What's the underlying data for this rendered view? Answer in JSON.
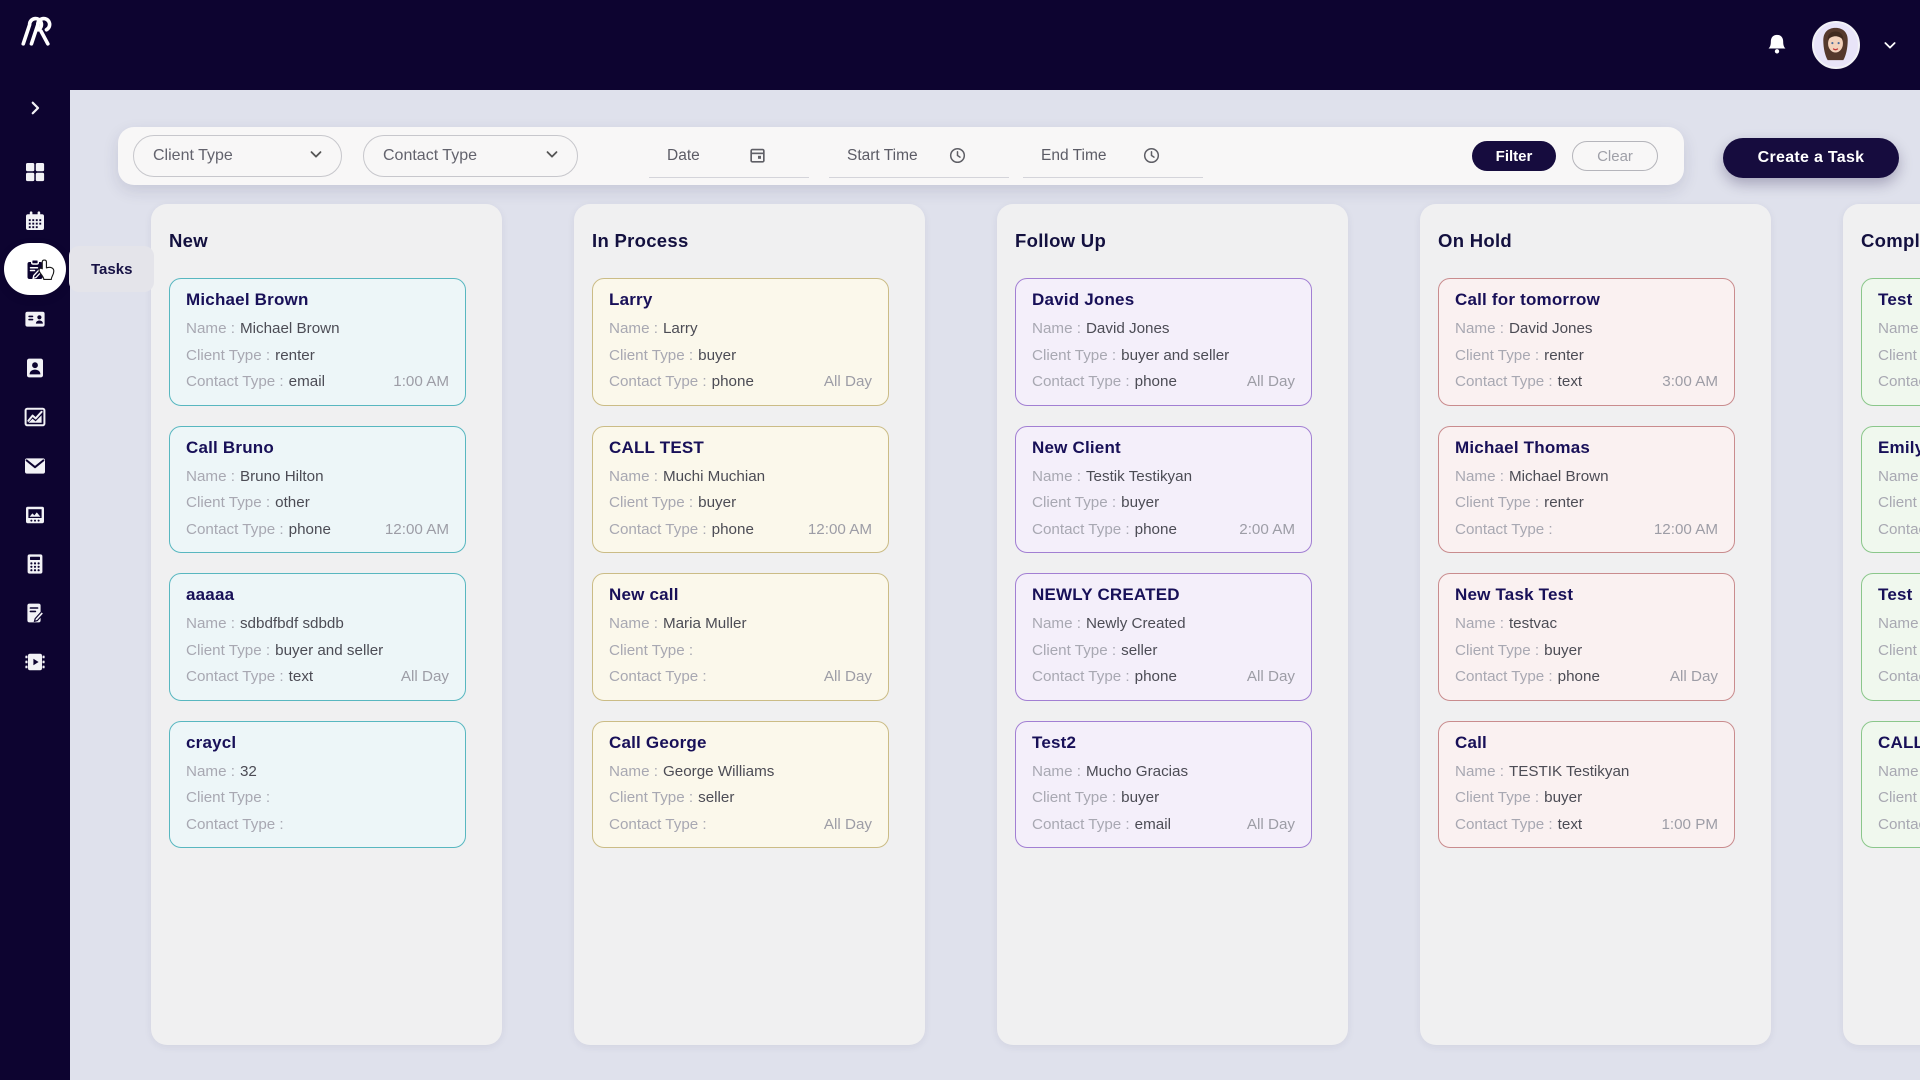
{
  "topbar": {
    "icons": [
      "bell-icon",
      "user-avatar",
      "chevron-down-icon"
    ]
  },
  "sidebar": {
    "collapse_icon": "chevron-right-icon",
    "items": [
      {
        "name": "dashboard",
        "icon": "dashboard-grid-icon",
        "active": false
      },
      {
        "name": "calendar",
        "icon": "calendar-icon",
        "active": false
      },
      {
        "name": "tasks",
        "icon": "tasks-clipboard-icon",
        "active": true,
        "tooltip": "Tasks"
      },
      {
        "name": "contacts",
        "icon": "contact-card-icon",
        "active": false
      },
      {
        "name": "clients",
        "icon": "user-icon",
        "active": false
      },
      {
        "name": "analytics",
        "icon": "line-chart-icon",
        "active": false
      },
      {
        "name": "mail",
        "icon": "envelope-icon",
        "active": false
      },
      {
        "name": "media",
        "icon": "gallery-window-icon",
        "active": false
      },
      {
        "name": "calculator",
        "icon": "calculator-icon",
        "active": false
      },
      {
        "name": "notes",
        "icon": "document-edit-icon",
        "active": false
      },
      {
        "name": "videos",
        "icon": "video-chip-icon",
        "active": false
      }
    ]
  },
  "filter_bar": {
    "client_type": {
      "placeholder": "Client Type"
    },
    "contact_type": {
      "placeholder": "Contact Type"
    },
    "date": {
      "placeholder": "Date"
    },
    "start_time": {
      "placeholder": "Start Time"
    },
    "end_time": {
      "placeholder": "End Time"
    },
    "filter_label": "Filter",
    "clear_label": "Clear"
  },
  "create_task_label": "Create a Task",
  "board": {
    "row_labels": {
      "name": "Name :",
      "client_type": "Client Type :",
      "contact_type": "Contact Type :"
    },
    "columns": [
      {
        "title": "New",
        "accent": "#58b7c0",
        "card_bg": "#edf6f8",
        "cards": [
          {
            "title": "Michael Brown",
            "name": "Michael Brown",
            "client_type": "renter",
            "contact_type": "email",
            "time": "1:00 AM"
          },
          {
            "title": "Call Bruno",
            "name": "Bruno Hilton",
            "client_type": "other",
            "contact_type": "phone",
            "time": "12:00 AM"
          },
          {
            "title": "aaaaa",
            "name": "sdbdfbdf sdbdb",
            "client_type": "buyer and seller",
            "contact_type": "text",
            "time": "All Day"
          },
          {
            "title": "craycl",
            "name": "32",
            "client_type": "",
            "contact_type": "",
            "time": ""
          }
        ]
      },
      {
        "title": "In Process",
        "accent": "#cbbc86",
        "card_bg": "#fbf8eb",
        "cards": [
          {
            "title": "Larry",
            "name": "Larry",
            "client_type": "buyer",
            "contact_type": "phone",
            "time": "All Day"
          },
          {
            "title": "CALL TEST",
            "name": "Muchi Muchian",
            "client_type": "buyer",
            "contact_type": "phone",
            "time": "12:00 AM"
          },
          {
            "title": "New call",
            "name": "Maria Muller",
            "client_type": "",
            "contact_type": "",
            "time": "All Day"
          },
          {
            "title": "Call George",
            "name": "George Williams",
            "client_type": "seller",
            "contact_type": "",
            "time": "All Day"
          }
        ]
      },
      {
        "title": "Follow Up",
        "accent": "#a27fd3",
        "card_bg": "#f4effa",
        "cards": [
          {
            "title": "David Jones",
            "name": "David Jones",
            "client_type": "buyer and seller",
            "contact_type": "phone",
            "time": "All Day"
          },
          {
            "title": "New Client",
            "name": "Testik Testikyan",
            "client_type": "buyer",
            "contact_type": "phone",
            "time": "2:00 AM"
          },
          {
            "title": "NEWLY CREATED",
            "name": "Newly Created",
            "client_type": "seller",
            "contact_type": "phone",
            "time": "All Day"
          },
          {
            "title": "Test2",
            "name": "Mucho Gracias",
            "client_type": "buyer",
            "contact_type": "email",
            "time": "All Day"
          }
        ]
      },
      {
        "title": "On Hold",
        "accent": "#c98c8e",
        "card_bg": "#faf1f1",
        "cards": [
          {
            "title": "Call for tomorrow",
            "name": "David Jones",
            "client_type": "renter",
            "contact_type": "text",
            "time": "3:00 AM"
          },
          {
            "title": "Michael Thomas",
            "name": "Michael Brown",
            "client_type": "renter",
            "contact_type": "",
            "time": "12:00 AM"
          },
          {
            "title": "New Task Test",
            "name": "testvac",
            "client_type": "buyer",
            "contact_type": "phone",
            "time": "All Day"
          },
          {
            "title": "Call",
            "name": "TESTIK Testikyan",
            "client_type": "buyer",
            "contact_type": "text",
            "time": "1:00 PM"
          }
        ]
      },
      {
        "title": "Completed",
        "accent": "#8bc78b",
        "card_bg": "#f0f8ee",
        "cards": [
          {
            "title": "Test",
            "name": "",
            "client_type": "",
            "contact_type": "",
            "time": ""
          },
          {
            "title": "Emily",
            "name": "",
            "client_type": "",
            "contact_type": "",
            "time": ""
          },
          {
            "title": "Test",
            "name": "",
            "client_type": "",
            "contact_type": "",
            "time": ""
          },
          {
            "title": "CALL",
            "name": "",
            "client_type": "",
            "contact_type": "",
            "time": ""
          }
        ]
      }
    ]
  },
  "colors": {
    "topbar_bg": "#0d0430",
    "accent_navy": "#160c3e",
    "page_bg": "#dfe1ec",
    "panel_bg": "#f0f0f1"
  }
}
